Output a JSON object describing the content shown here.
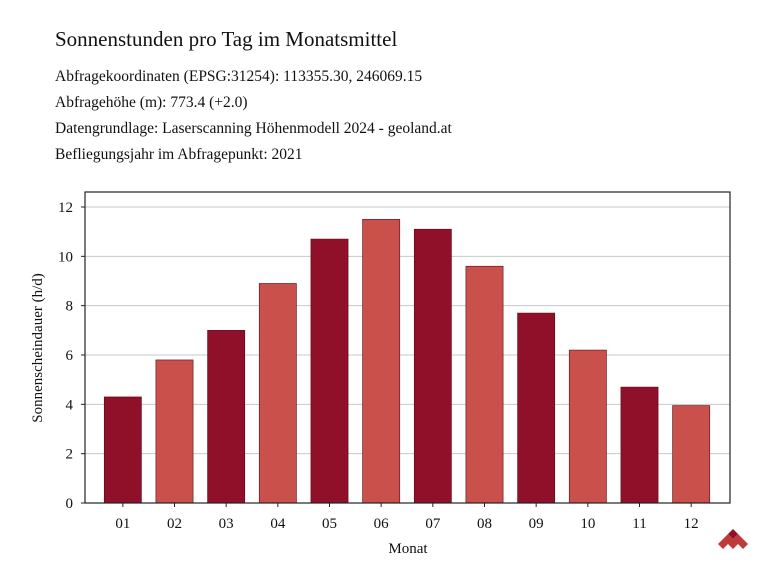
{
  "header": {
    "title": "Sonnenstunden pro Tag im Monatsmittel",
    "meta_lines": [
      "Abfragekoordinaten (EPSG:31254): 113355.30, 246069.15",
      "Abfragehöhe (m): 773.4 (+2.0)",
      "Datengrundlage: Laserscanning Höhenmodell 2024 - geoland.at",
      "Befliegungsjahr im Abfragepunkt: 2021"
    ]
  },
  "chart_data": {
    "type": "bar",
    "categories": [
      "01",
      "02",
      "03",
      "04",
      "05",
      "06",
      "07",
      "08",
      "09",
      "10",
      "11",
      "12"
    ],
    "values": [
      4.3,
      5.8,
      7.0,
      8.9,
      10.7,
      11.5,
      11.1,
      9.6,
      7.7,
      6.2,
      4.7,
      3.95
    ],
    "xlabel": "Monat",
    "ylabel": "Sonnenscheindauer (h/d)",
    "ylim": [
      0,
      12
    ],
    "yticks": [
      0,
      2,
      4,
      6,
      8,
      10,
      12
    ],
    "grid": true,
    "colors": {
      "dark": "#8f1028",
      "light": "#c9504b",
      "grid": "#c8c8c8",
      "frame": "#222222"
    }
  },
  "logo": {
    "icon": "geoland-logo-icon",
    "color": "#c0393b"
  }
}
